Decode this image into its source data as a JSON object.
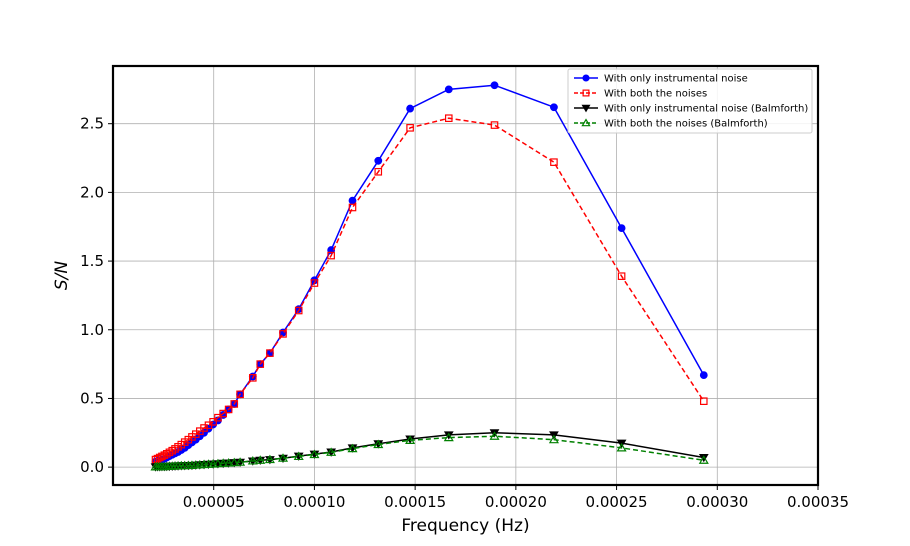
{
  "chart_data": {
    "type": "line",
    "xlabel": "Frequency (Hz)",
    "ylabel": "S/N",
    "xlim": [
      0.0,
      0.00035
    ],
    "ylim": [
      -0.13,
      2.92
    ],
    "xticks": [
      5e-05,
      0.0001,
      0.00015,
      0.0002,
      0.00025,
      0.0003,
      0.00035
    ],
    "xtick_labels": [
      "0.00005",
      "0.00010",
      "0.00015",
      "0.00020",
      "0.00025",
      "0.00030",
      "0.00035"
    ],
    "yticks": [
      0.0,
      0.5,
      1.0,
      1.5,
      2.0,
      2.5
    ],
    "ytick_labels": [
      "0.0",
      "0.5",
      "1.0",
      "1.5",
      "2.0",
      "2.5"
    ],
    "grid": true,
    "legend_position": "top-right",
    "x": [
      2.11e-05,
      2.21e-05,
      2.32e-05,
      2.43e-05,
      2.55e-05,
      2.67e-05,
      2.8e-05,
      2.94e-05,
      3.08e-05,
      3.23e-05,
      3.39e-05,
      3.56e-05,
      3.74e-05,
      3.92e-05,
      4.11e-05,
      4.31e-05,
      4.52e-05,
      4.74e-05,
      4.97e-05,
      5.21e-05,
      5.47e-05,
      5.74e-05,
      6.02e-05,
      6.31e-05,
      6.94e-05,
      7.31e-05,
      7.79e-05,
      8.44e-05,
      9.22e-05,
      0.0001,
      0.0001083,
      0.0001189,
      0.0001317,
      0.0001475,
      0.0001667,
      0.0001894,
      0.0002189,
      0.0002525,
      0.0002933
    ],
    "series": [
      {
        "name": "With only instrumental noise",
        "color": "#0000ff",
        "line_style": "solid",
        "marker": "circle-filled",
        "values": [
          0.04,
          0.045,
          0.05,
          0.055,
          0.06,
          0.07,
          0.08,
          0.09,
          0.1,
          0.11,
          0.125,
          0.14,
          0.16,
          0.18,
          0.2,
          0.225,
          0.25,
          0.28,
          0.31,
          0.34,
          0.38,
          0.42,
          0.46,
          0.53,
          0.66,
          0.75,
          0.83,
          0.98,
          1.15,
          1.36,
          1.58,
          1.94,
          2.23,
          2.61,
          2.75,
          2.78,
          2.62,
          1.74,
          0.67
        ]
      },
      {
        "name": "With both the noises",
        "color": "#ff0000",
        "line_style": "dashed",
        "marker": "square-open",
        "values": [
          0.055,
          0.062,
          0.07,
          0.078,
          0.087,
          0.097,
          0.108,
          0.12,
          0.133,
          0.148,
          0.164,
          0.182,
          0.2,
          0.22,
          0.24,
          0.262,
          0.285,
          0.305,
          0.33,
          0.36,
          0.39,
          0.42,
          0.46,
          0.53,
          0.65,
          0.75,
          0.83,
          0.97,
          1.14,
          1.34,
          1.54,
          1.89,
          2.15,
          2.47,
          2.54,
          2.49,
          2.22,
          1.39,
          0.48
        ]
      },
      {
        "name": "With only instrumental noise (Balmforth)",
        "color": "#000000",
        "line_style": "solid",
        "marker": "triangle-down-filled",
        "values": [
          0.002,
          0.003,
          0.003,
          0.004,
          0.004,
          0.005,
          0.006,
          0.007,
          0.008,
          0.009,
          0.01,
          0.011,
          0.012,
          0.013,
          0.015,
          0.017,
          0.019,
          0.021,
          0.023,
          0.025,
          0.028,
          0.03,
          0.033,
          0.036,
          0.045,
          0.05,
          0.055,
          0.065,
          0.08,
          0.095,
          0.11,
          0.14,
          0.17,
          0.205,
          0.235,
          0.25,
          0.235,
          0.175,
          0.07
        ]
      },
      {
        "name": "With both the noises (Balmforth)",
        "color": "#008000",
        "line_style": "dashed",
        "marker": "triangle-up-open",
        "values": [
          0.002,
          0.003,
          0.003,
          0.004,
          0.004,
          0.005,
          0.006,
          0.007,
          0.008,
          0.009,
          0.01,
          0.011,
          0.012,
          0.013,
          0.015,
          0.017,
          0.019,
          0.021,
          0.023,
          0.025,
          0.028,
          0.03,
          0.033,
          0.036,
          0.045,
          0.05,
          0.055,
          0.065,
          0.078,
          0.092,
          0.108,
          0.135,
          0.165,
          0.195,
          0.215,
          0.225,
          0.2,
          0.14,
          0.05
        ]
      }
    ]
  }
}
